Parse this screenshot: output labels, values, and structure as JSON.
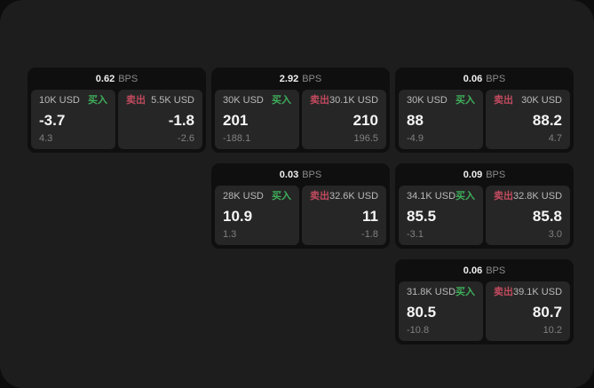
{
  "labels": {
    "bps_unit": "BPS",
    "buy": "买入",
    "sell": "卖出"
  },
  "colors": {
    "window_background": "#1d1d1d",
    "card_background": "#0f0f0f",
    "panel_background": "#262626",
    "buy_green": "#3fae5a",
    "sell_red": "#c04a5e",
    "primary_text": "#f5f5f5",
    "secondary_text": "#b9b9b9",
    "muted_text": "#808080"
  },
  "cards": [
    {
      "bps_value": "0.62",
      "buy": {
        "amount": "10K USD",
        "value": "-3.7",
        "sub": "4.3"
      },
      "sell": {
        "amount": "5.5K USD",
        "value": "-1.8",
        "sub": "-2.6"
      }
    },
    {
      "bps_value": "2.92",
      "buy": {
        "amount": "30K USD",
        "value": "201",
        "sub": "-188.1"
      },
      "sell": {
        "amount": "30.1K USD",
        "value": "210",
        "sub": "196.5"
      }
    },
    {
      "bps_value": "0.06",
      "buy": {
        "amount": "30K USD",
        "value": "88",
        "sub": "-4.9"
      },
      "sell": {
        "amount": "30K USD",
        "value": "88.2",
        "sub": "4.7"
      }
    },
    {
      "bps_value": "0.03",
      "buy": {
        "amount": "28K USD",
        "value": "10.9",
        "sub": "1.3"
      },
      "sell": {
        "amount": "32.6K USD",
        "value": "11",
        "sub": "-1.8"
      }
    },
    {
      "bps_value": "0.09",
      "buy": {
        "amount": "34.1K USD",
        "value": "85.5",
        "sub": "-3.1"
      },
      "sell": {
        "amount": "32.8K USD",
        "value": "85.8",
        "sub": "3.0"
      }
    },
    {
      "bps_value": "0.06",
      "buy": {
        "amount": "31.8K USD",
        "value": "80.5",
        "sub": "-10.8"
      },
      "sell": {
        "amount": "39.1K USD",
        "value": "80.7",
        "sub": "10.2"
      }
    }
  ]
}
